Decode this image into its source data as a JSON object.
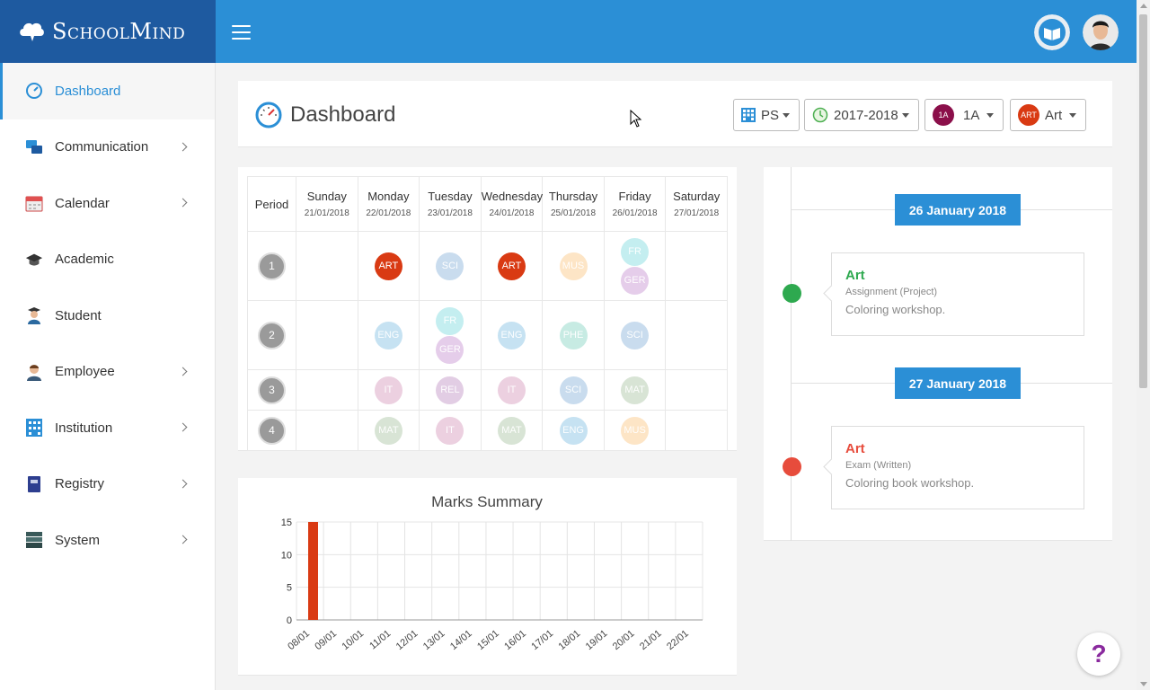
{
  "app": {
    "brand": "SchoolMind"
  },
  "colors": {
    "primary": "#2b8fd6",
    "brand_dark": "#1e5aa0",
    "art": "#d93a13",
    "exam_red": "#e74c3c",
    "assignment_green": "#2ea94f"
  },
  "sidebar": {
    "items": [
      {
        "label": "Dashboard",
        "icon": "dashboard-gauge-icon",
        "active": true,
        "has_children": false
      },
      {
        "label": "Communication",
        "icon": "chat-bubbles-icon",
        "active": false,
        "has_children": true
      },
      {
        "label": "Calendar",
        "icon": "calendar-icon",
        "active": false,
        "has_children": true
      },
      {
        "label": "Academic",
        "icon": "graduation-cap-icon",
        "active": false,
        "has_children": false
      },
      {
        "label": "Student",
        "icon": "student-icon",
        "active": false,
        "has_children": false
      },
      {
        "label": "Employee",
        "icon": "employee-icon",
        "active": false,
        "has_children": true
      },
      {
        "label": "Institution",
        "icon": "building-grid-icon",
        "active": false,
        "has_children": true
      },
      {
        "label": "Registry",
        "icon": "book-icon",
        "active": false,
        "has_children": true
      },
      {
        "label": "System",
        "icon": "server-stack-icon",
        "active": false,
        "has_children": true
      }
    ]
  },
  "header": {
    "title": "Dashboard",
    "selectors": {
      "school": {
        "label": "PS",
        "icon": "grid-building-icon"
      },
      "year": {
        "label": "2017-2018",
        "icon": "clock-icon"
      },
      "class": {
        "label": "1A",
        "badge": "1A",
        "badge_color": "#8b0f4a"
      },
      "subject": {
        "label": "Art",
        "badge": "ART",
        "badge_color": "#d93a13"
      }
    }
  },
  "timetable": {
    "period_header": "Period",
    "days": [
      {
        "name": "Sunday",
        "date": "21/01/2018"
      },
      {
        "name": "Monday",
        "date": "22/01/2018"
      },
      {
        "name": "Tuesday",
        "date": "23/01/2018"
      },
      {
        "name": "Wednesday",
        "date": "24/01/2018"
      },
      {
        "name": "Thursday",
        "date": "25/01/2018"
      },
      {
        "name": "Friday",
        "date": "26/01/2018"
      },
      {
        "name": "Saturday",
        "date": "27/01/2018"
      }
    ],
    "rows": [
      {
        "period": "1",
        "cells": [
          [],
          [
            {
              "code": "ART",
              "color": "#d93a13",
              "strong": true
            }
          ],
          [
            {
              "code": "SCI",
              "color": "#c9dcee"
            }
          ],
          [
            {
              "code": "ART",
              "color": "#d93a13",
              "strong": true
            }
          ],
          [
            {
              "code": "MUS",
              "color": "#fde5c6"
            }
          ],
          [
            {
              "code": "FR",
              "color": "#c4eef0"
            },
            {
              "code": "GER",
              "color": "#e5cdea"
            }
          ],
          []
        ]
      },
      {
        "period": "2",
        "cells": [
          [],
          [
            {
              "code": "ENG",
              "color": "#c6e2f2"
            }
          ],
          [
            {
              "code": "FR",
              "color": "#c4eef0"
            },
            {
              "code": "GER",
              "color": "#e5cdea"
            }
          ],
          [
            {
              "code": "ENG",
              "color": "#c6e2f2"
            }
          ],
          [
            {
              "code": "PHE",
              "color": "#c7ebe3"
            }
          ],
          [
            {
              "code": "SCI",
              "color": "#c9dcee"
            }
          ],
          []
        ]
      },
      {
        "period": "3",
        "cells": [
          [],
          [
            {
              "code": "IT",
              "color": "#ecd0e0"
            }
          ],
          [
            {
              "code": "REL",
              "color": "#e2cde4"
            }
          ],
          [
            {
              "code": "IT",
              "color": "#ecd0e0"
            }
          ],
          [
            {
              "code": "SCI",
              "color": "#c9dcee"
            }
          ],
          [
            {
              "code": "MAT",
              "color": "#d8e4d5"
            }
          ],
          []
        ]
      },
      {
        "period": "4",
        "cells": [
          [],
          [
            {
              "code": "MAT",
              "color": "#d8e4d5"
            }
          ],
          [
            {
              "code": "IT",
              "color": "#ecd0e0"
            }
          ],
          [
            {
              "code": "MAT",
              "color": "#d8e4d5"
            }
          ],
          [
            {
              "code": "ENG",
              "color": "#c6e2f2"
            }
          ],
          [
            {
              "code": "MUS",
              "color": "#fde5c6"
            }
          ],
          []
        ]
      }
    ]
  },
  "chart_data": {
    "type": "bar",
    "title": "Marks Summary",
    "categories": [
      "08/01",
      "09/01",
      "10/01",
      "11/01",
      "12/01",
      "13/01",
      "14/01",
      "15/01",
      "16/01",
      "17/01",
      "18/01",
      "19/01",
      "20/01",
      "21/01",
      "22/01"
    ],
    "values": [
      15,
      0,
      0,
      0,
      0,
      0,
      0,
      0,
      0,
      0,
      0,
      0,
      0,
      0,
      0
    ],
    "ylim": [
      0,
      15
    ],
    "yticks": [
      0,
      5,
      10,
      15
    ],
    "bar_color": "#d93a13",
    "grid": true
  },
  "timeline": {
    "entries": [
      {
        "date": "26 January 2018",
        "subject": "Art",
        "type": "Assignment (Project)",
        "description": "Coloring workshop.",
        "color": "#2ea94f"
      },
      {
        "date": "27 January 2018",
        "subject": "Art",
        "type": "Exam (Written)",
        "description": "Coloring book workshop.",
        "color": "#e74c3c"
      }
    ]
  },
  "help": {
    "label": "?"
  }
}
